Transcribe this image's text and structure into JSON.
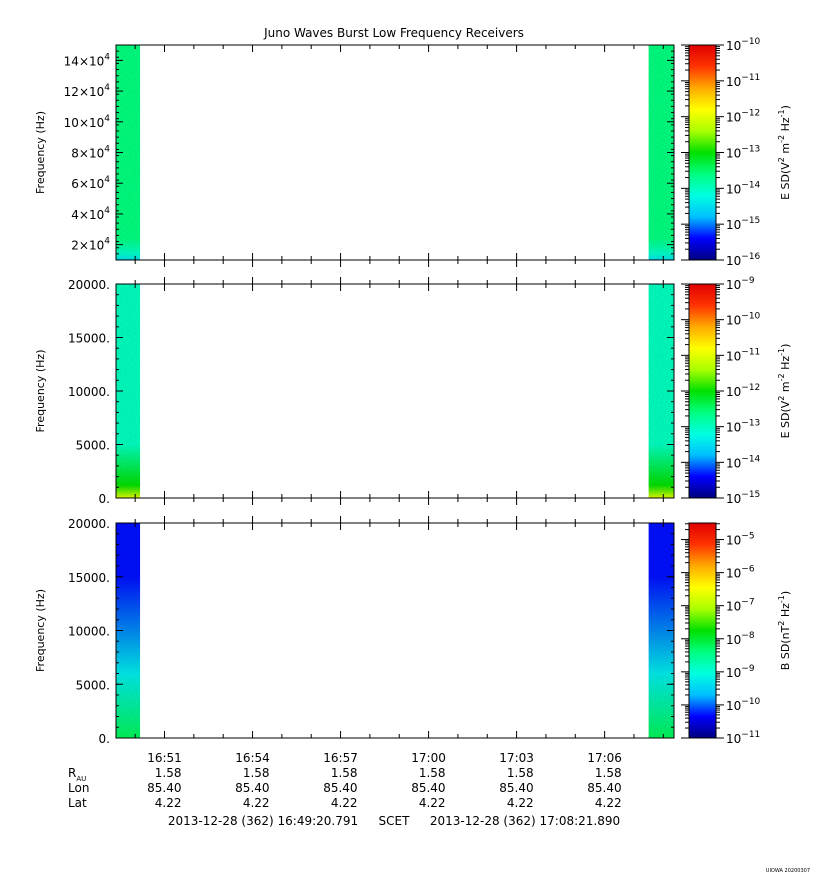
{
  "title": "Juno Waves Burst Low Frequency Receivers",
  "stamp": "UIOWA 20200307",
  "colors": {
    "background": "#ffffff",
    "colormap": [
      "#00007f",
      "#0000ff",
      "#00bfff",
      "#00ffe0",
      "#00ff7f",
      "#00e000",
      "#aaff00",
      "#ffff00",
      "#ffaa00",
      "#ff3300",
      "#e00000"
    ]
  },
  "chart_data": [
    {
      "type": "heatmap",
      "panel": "top",
      "ylabel": "Frequency (Hz)",
      "ylim": [
        10000,
        150000
      ],
      "yticks": [
        {
          "value": 20000,
          "mant": "2",
          "exp": "4"
        },
        {
          "value": 40000,
          "mant": "4",
          "exp": "4"
        },
        {
          "value": 60000,
          "mant": "6",
          "exp": "4"
        },
        {
          "value": 80000,
          "mant": "8",
          "exp": "4"
        },
        {
          "value": 100000,
          "mant": "10",
          "exp": "4"
        },
        {
          "value": 120000,
          "mant": "12",
          "exp": "4"
        },
        {
          "value": 140000,
          "mant": "14",
          "exp": "4"
        }
      ],
      "colorbar": {
        "label": "E SD",
        "label_units": "V",
        "scale": "log",
        "range": [
          -16,
          -10
        ],
        "ticks": [
          -16,
          -15,
          -14,
          -13,
          -12,
          -11,
          -10
        ]
      },
      "data_blocks": [
        {
          "t_start": "16:49:21",
          "t_end": "16:50:10",
          "low_value": -14.5,
          "high_value": -13.6
        },
        {
          "t_start": "17:07:30",
          "t_end": "17:08:22",
          "low_value": -14.5,
          "high_value": -13.6
        }
      ]
    },
    {
      "type": "heatmap",
      "panel": "middle",
      "ylabel": "Frequency (Hz)",
      "ylim": [
        0,
        20000
      ],
      "yticks": [
        {
          "value": 0,
          "label": "0."
        },
        {
          "value": 5000,
          "label": "5000."
        },
        {
          "value": 10000,
          "label": "10000."
        },
        {
          "value": 15000,
          "label": "15000."
        },
        {
          "value": 20000,
          "label": "20000."
        }
      ],
      "colorbar": {
        "label": "E SD",
        "label_units": "V",
        "scale": "log",
        "range": [
          -15,
          -9
        ],
        "ticks": [
          -15,
          -14,
          -13,
          -12,
          -11,
          -10,
          -9
        ]
      },
      "data_blocks": [
        {
          "t_start": "16:49:21",
          "t_end": "16:50:10",
          "low_value": -11.0,
          "high_value": -13.0
        },
        {
          "t_start": "17:07:30",
          "t_end": "17:08:22",
          "low_value": -11.0,
          "high_value": -13.0
        }
      ]
    },
    {
      "type": "heatmap",
      "panel": "bottom",
      "ylabel": "Frequency (Hz)",
      "ylim": [
        0,
        20000
      ],
      "yticks": [
        {
          "value": 0,
          "label": "0."
        },
        {
          "value": 5000,
          "label": "5000."
        },
        {
          "value": 10000,
          "label": "10000."
        },
        {
          "value": 15000,
          "label": "15000."
        },
        {
          "value": 20000,
          "label": "20000."
        }
      ],
      "colorbar": {
        "label": "B SD",
        "label_units": "nT",
        "scale": "log",
        "range": [
          -11,
          -4.5
        ],
        "ticks": [
          -11,
          -10,
          -9,
          -8,
          -7,
          -6,
          -5
        ]
      },
      "data_blocks": [
        {
          "t_start": "16:49:21",
          "t_end": "16:50:10",
          "low_value": -8.2,
          "high_value": -10.3
        },
        {
          "t_start": "17:07:30",
          "t_end": "17:08:22",
          "low_value": -8.2,
          "high_value": -10.3
        }
      ]
    }
  ],
  "time_axis": {
    "start": "16:49:20.791",
    "end": "17:08:21.890",
    "tick_labels": [
      "16:51",
      "16:54",
      "16:57",
      "17:00",
      "17:03",
      "17:06"
    ],
    "tick_times": [
      "16:51:00",
      "16:54:00",
      "16:57:00",
      "17:00:00",
      "17:03:00",
      "17:06:00"
    ],
    "minor_times": [
      "16:50:00",
      "16:52:00",
      "16:53:00",
      "16:55:00",
      "16:56:00",
      "16:58:00",
      "16:59:00",
      "17:01:00",
      "17:02:00",
      "17:04:00",
      "17:05:00",
      "17:07:00",
      "17:08:00"
    ]
  },
  "ephemeris": {
    "rows": [
      {
        "label": "R",
        "sub": "AU",
        "values": [
          "1.58",
          "1.58",
          "1.58",
          "1.58",
          "1.58",
          "1.58"
        ]
      },
      {
        "label": "Lon",
        "sub": "",
        "values": [
          "85.40",
          "85.40",
          "85.40",
          "85.40",
          "85.40",
          "85.40"
        ]
      },
      {
        "label": "Lat",
        "sub": "",
        "values": [
          "4.22",
          "4.22",
          "4.22",
          "4.22",
          "4.22",
          "4.22"
        ]
      }
    ]
  },
  "footer": {
    "start": "2013-12-28 (362) 16:49:20.791",
    "system": "SCET",
    "end": "2013-12-28 (362) 17:08:21.890"
  }
}
